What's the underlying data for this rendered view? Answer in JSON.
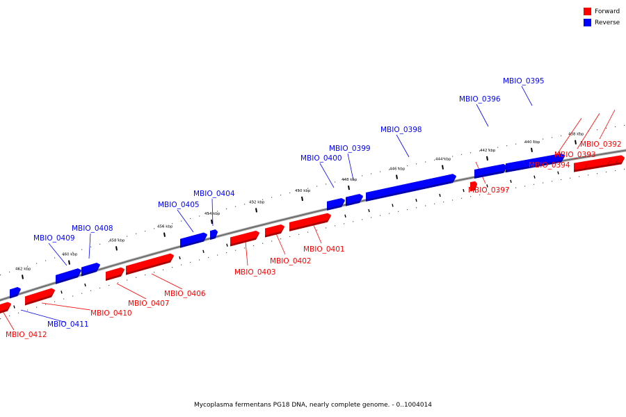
{
  "legend": [
    {
      "label": "Forward",
      "color": "#ff0000"
    },
    {
      "label": "Reverse",
      "color": "#0000ff"
    }
  ],
  "colors": {
    "forward": "#ff0000",
    "reverse": "#0000ff",
    "backbone": "#6e6e6e"
  },
  "footer": "Mycoplasma fermentans PG18 DNA, nearly complete genome. - 0..1004014",
  "scale_labels": [
    "438 kbp",
    "440 kbp",
    "442 kbp",
    "444 kbp",
    "446 kbp",
    "448 kbp",
    "450 kbp",
    "452 kbp",
    "454 kbp",
    "456 kbp",
    "458 kbp",
    "460 kbp",
    "462 kbp"
  ],
  "genes": [
    {
      "name": "MBIO_0392",
      "strand": "forward"
    },
    {
      "name": "MBIO_0393",
      "strand": "forward"
    },
    {
      "name": "MBIO_0394",
      "strand": "forward"
    },
    {
      "name": "MBIO_0395",
      "strand": "reverse"
    },
    {
      "name": "MBIO_0396",
      "strand": "reverse"
    },
    {
      "name": "MBIO_0397",
      "strand": "forward"
    },
    {
      "name": "MBIO_0398",
      "strand": "reverse"
    },
    {
      "name": "MBIO_0399",
      "strand": "reverse"
    },
    {
      "name": "MBIO_0400",
      "strand": "reverse"
    },
    {
      "name": "MBIO_0401",
      "strand": "forward"
    },
    {
      "name": "MBIO_0402",
      "strand": "forward"
    },
    {
      "name": "MBIO_0403",
      "strand": "forward"
    },
    {
      "name": "MBIO_0404",
      "strand": "reverse"
    },
    {
      "name": "MBIO_0405",
      "strand": "reverse"
    },
    {
      "name": "MBIO_0406",
      "strand": "forward"
    },
    {
      "name": "MBIO_0407",
      "strand": "forward"
    },
    {
      "name": "MBIO_0408",
      "strand": "reverse"
    },
    {
      "name": "MBIO_0409",
      "strand": "reverse"
    },
    {
      "name": "MBIO_0410",
      "strand": "forward"
    },
    {
      "name": "MBIO_0411",
      "strand": "reverse"
    },
    {
      "name": "MBIO_0412",
      "strand": "forward"
    }
  ]
}
